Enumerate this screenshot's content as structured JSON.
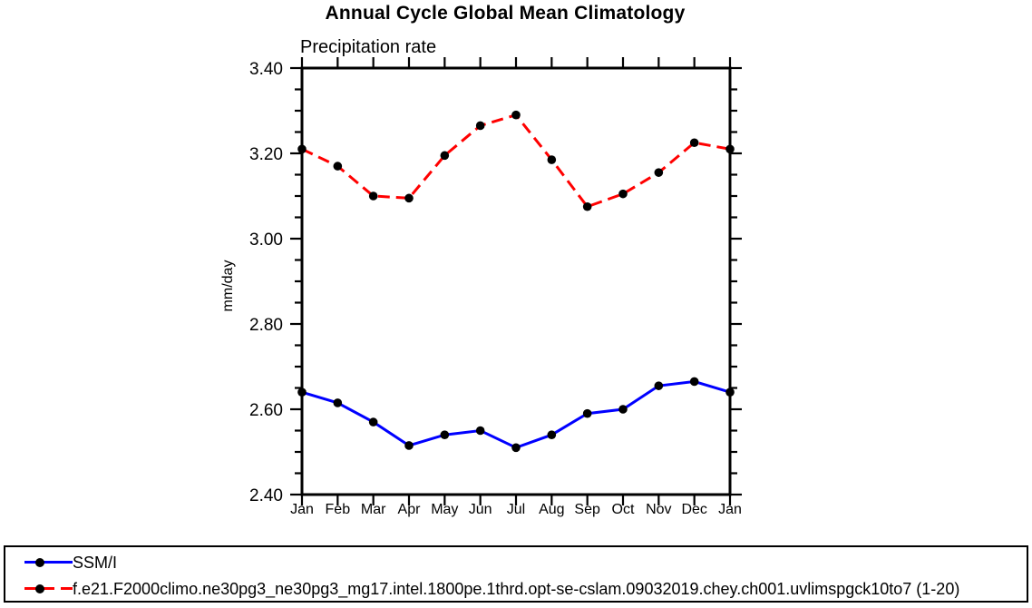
{
  "chart_data": {
    "type": "line",
    "title": "Annual Cycle Global Mean Climatology",
    "subtitle": "Precipitation rate",
    "ylabel": "mm/day",
    "xlabel": "",
    "categories": [
      "Jan",
      "Feb",
      "Mar",
      "Apr",
      "May",
      "Jun",
      "Jul",
      "Aug",
      "Sep",
      "Oct",
      "Nov",
      "Dec",
      "Jan"
    ],
    "ylim": [
      2.4,
      3.4
    ],
    "ytick_major_step": 0.2,
    "ytick_minor_step": 0.05,
    "ytick_label_format": "2dp",
    "grid": false,
    "legend_position": "bottom-left-box",
    "axis_color": "#000000",
    "marker_color": "#000000",
    "series": [
      {
        "name": "SSM/I",
        "color": "#0000ff",
        "line_style": "solid",
        "marker": "circle",
        "values": [
          2.64,
          2.615,
          2.57,
          2.515,
          2.54,
          2.55,
          2.51,
          2.54,
          2.59,
          2.6,
          2.655,
          2.665,
          2.64
        ]
      },
      {
        "name": "f.e21.F2000climo.ne30pg3_ne30pg3_mg17.intel.1800pe.1thrd.opt-se-cslam.09032019.chey.ch001.uvlimspgck10to7 (1-20)",
        "color": "#ff0000",
        "line_style": "dashed",
        "marker": "circle",
        "values": [
          3.21,
          3.17,
          3.1,
          3.095,
          3.195,
          3.265,
          3.29,
          3.185,
          3.075,
          3.105,
          3.155,
          3.225,
          3.21
        ]
      }
    ]
  }
}
